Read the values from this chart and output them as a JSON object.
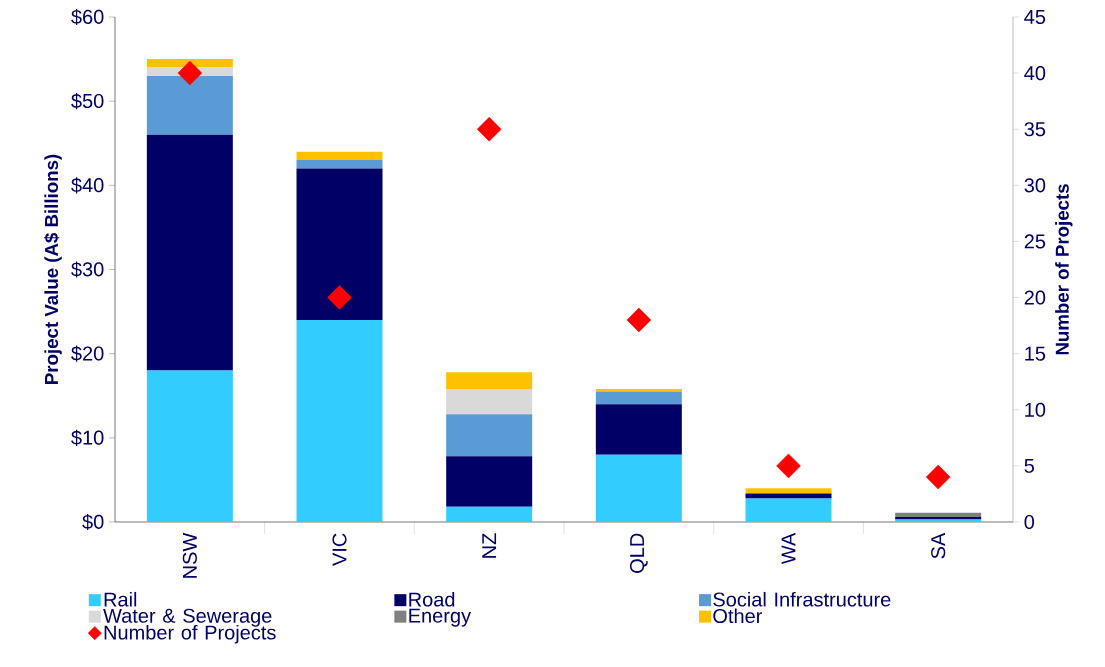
{
  "chart_data": {
    "type": "bar",
    "stacked": true,
    "categories": [
      "NSW",
      "VIC",
      "NZ",
      "QLD",
      "WA",
      "SA"
    ],
    "ylabel": "Project Value (A$ Billions)",
    "y2label": "Number of Projects",
    "ylim": [
      0,
      60
    ],
    "yticks": [
      {
        "value": 0,
        "label": "$0"
      },
      {
        "value": 10,
        "label": "$10"
      },
      {
        "value": 20,
        "label": "$20"
      },
      {
        "value": 30,
        "label": "$30"
      },
      {
        "value": 40,
        "label": "$40"
      },
      {
        "value": 50,
        "label": "$50"
      },
      {
        "value": 60,
        "label": "$60"
      }
    ],
    "y2lim": [
      0,
      45
    ],
    "y2ticks": [
      0,
      5,
      10,
      15,
      20,
      25,
      30,
      35,
      40,
      45
    ],
    "legend": "bottom",
    "series": [
      {
        "name": "Rail",
        "color": "#33ccff",
        "values": [
          18,
          24,
          1.8,
          8,
          2.8,
          0.3
        ]
      },
      {
        "name": "Road",
        "color": "#000066",
        "values": [
          28,
          18,
          6,
          6,
          0.6,
          0.3
        ]
      },
      {
        "name": "Social Infrastructure",
        "color": "#5b9bd5",
        "values": [
          7,
          1,
          5,
          1.5,
          0,
          0
        ]
      },
      {
        "name": "Water & Sewerage",
        "color": "#d9d9d9",
        "values": [
          1,
          0,
          3,
          0,
          0,
          0
        ]
      },
      {
        "name": "Energy",
        "color": "#808080",
        "values": [
          0,
          0,
          0,
          0,
          0,
          0.5
        ]
      },
      {
        "name": "Other",
        "color": "#ffc000",
        "values": [
          1,
          1,
          2,
          0.3,
          0.6,
          0
        ]
      },
      {
        "name": "Number of Projects",
        "type": "scatter",
        "axis": "y2",
        "marker": "diamond",
        "color": "#ff0000",
        "values": [
          40,
          20,
          35,
          18,
          5,
          4
        ]
      }
    ]
  }
}
